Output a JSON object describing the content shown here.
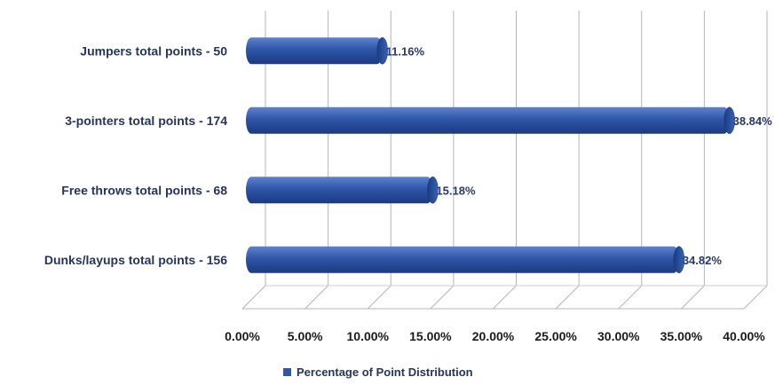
{
  "chart_data": {
    "type": "bar",
    "orientation": "horizontal",
    "categories": [
      "Jumpers total points - 50",
      "3-pointers total points -  174",
      "Free throws total points - 68",
      "Dunks/layups total points - 156"
    ],
    "series": [
      {
        "name": "Percentage of Point Distribution",
        "values": [
          11.16,
          38.84,
          15.18,
          34.82
        ],
        "labels": [
          "11.16%",
          "38.84%",
          "15.18%",
          "34.82%"
        ]
      }
    ],
    "xlim": [
      0,
      40
    ],
    "xticks": [
      "0.00%",
      "5.00%",
      "10.00%",
      "15.00%",
      "20.00%",
      "25.00%",
      "30.00%",
      "35.00%",
      "40.00%"
    ],
    "grid": true,
    "legend_position": "bottom",
    "colors": {
      "bar": "#2f56a8",
      "bar_dark": "#1b3a80",
      "bar_light": "#5f82cc",
      "grid": "#b5b5b5"
    }
  }
}
